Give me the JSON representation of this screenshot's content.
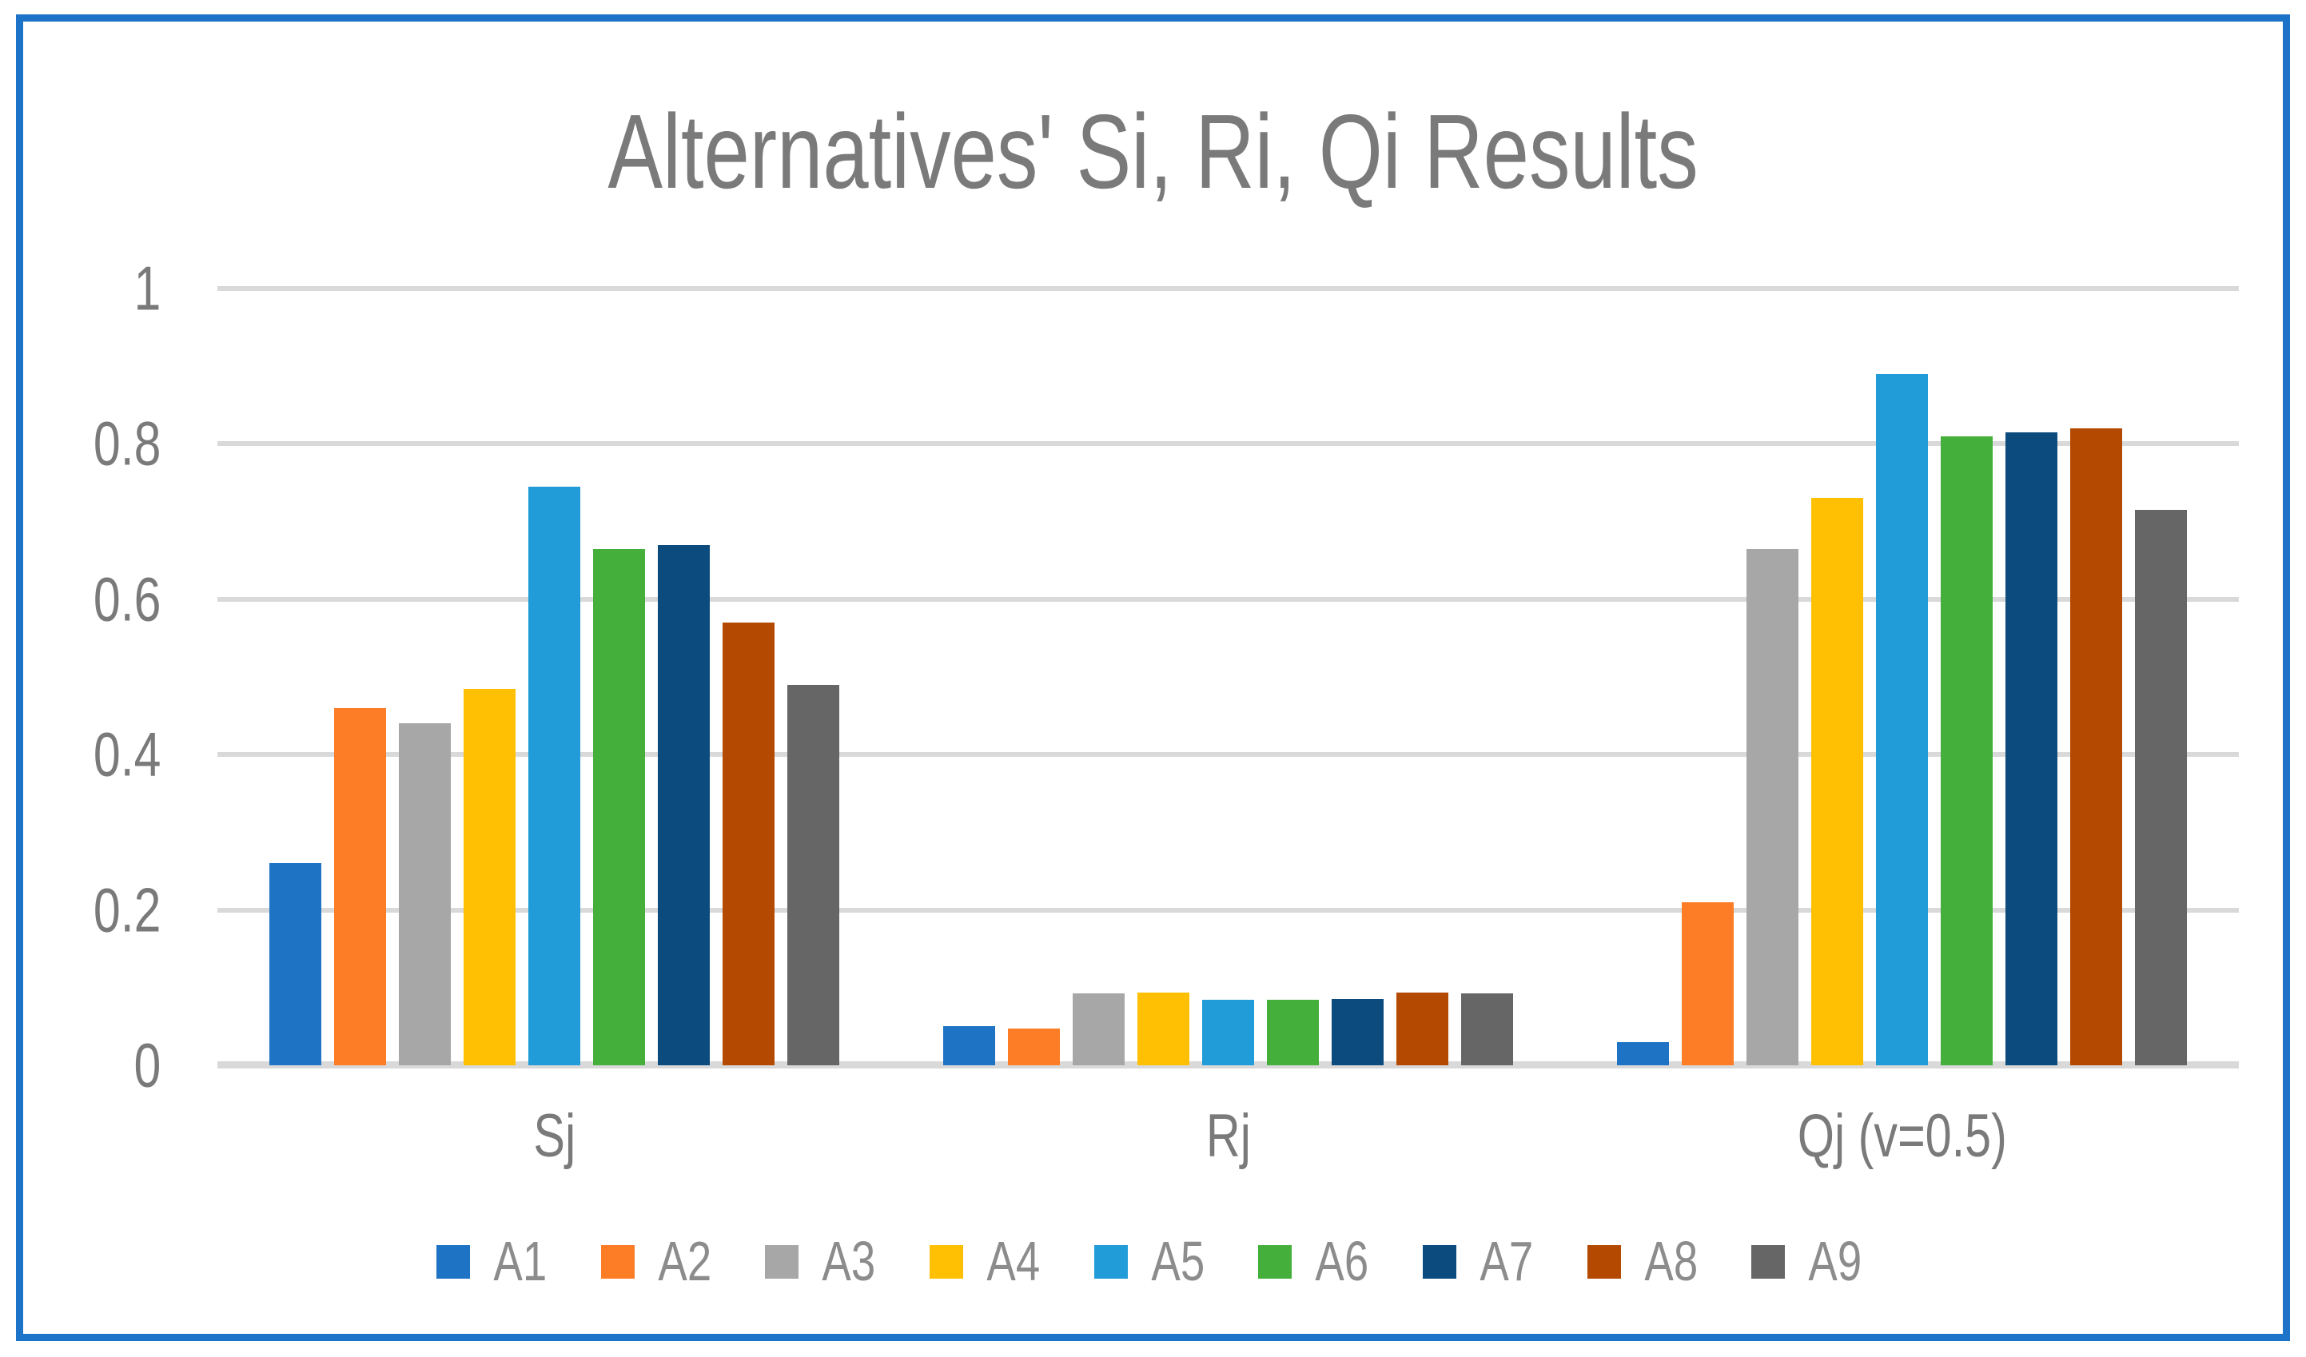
{
  "title": "Alternatives' Si, Ri, Qi Results",
  "style": {
    "frame_border_color": "#1C73C7",
    "text_color": "#7A7A7A",
    "legend_text_color": "#8C8C8C",
    "gridline_color": "#D9D9D9",
    "background_color": "#FFFFFF"
  },
  "chart_data": {
    "type": "bar",
    "title": "Alternatives' Si, Ri, Qi Results",
    "categories": [
      "Sj",
      "Rj",
      "Qj (v=0.5)"
    ],
    "series": [
      {
        "name": "A1",
        "color": "#1E73C5",
        "values": [
          0.26,
          0.05,
          0.03
        ]
      },
      {
        "name": "A2",
        "color": "#FD7D26",
        "values": [
          0.46,
          0.047,
          0.21
        ]
      },
      {
        "name": "A3",
        "color": "#A7A7A7",
        "values": [
          0.44,
          0.093,
          0.665
        ]
      },
      {
        "name": "A4",
        "color": "#FFC003",
        "values": [
          0.485,
          0.094,
          0.73
        ]
      },
      {
        "name": "A5",
        "color": "#219CD8",
        "values": [
          0.745,
          0.084,
          0.89
        ]
      },
      {
        "name": "A6",
        "color": "#44AF3B",
        "values": [
          0.665,
          0.084,
          0.81
        ]
      },
      {
        "name": "A7",
        "color": "#0C4B7D",
        "values": [
          0.67,
          0.085,
          0.815
        ]
      },
      {
        "name": "A8",
        "color": "#B44A01",
        "values": [
          0.57,
          0.094,
          0.82
        ]
      },
      {
        "name": "A9",
        "color": "#666666",
        "values": [
          0.49,
          0.093,
          0.715
        ]
      }
    ],
    "y_ticks": [
      {
        "value": 0,
        "label": "0"
      },
      {
        "value": 0.2,
        "label": "0.2"
      },
      {
        "value": 0.4,
        "label": "0.4"
      },
      {
        "value": 0.6,
        "label": "0.6"
      },
      {
        "value": 0.8,
        "label": "0.8"
      },
      {
        "value": 1,
        "label": "1"
      }
    ],
    "ylim": [
      0,
      1
    ],
    "xlabel": "",
    "ylabel": "",
    "grid": true,
    "legend_position": "bottom"
  }
}
